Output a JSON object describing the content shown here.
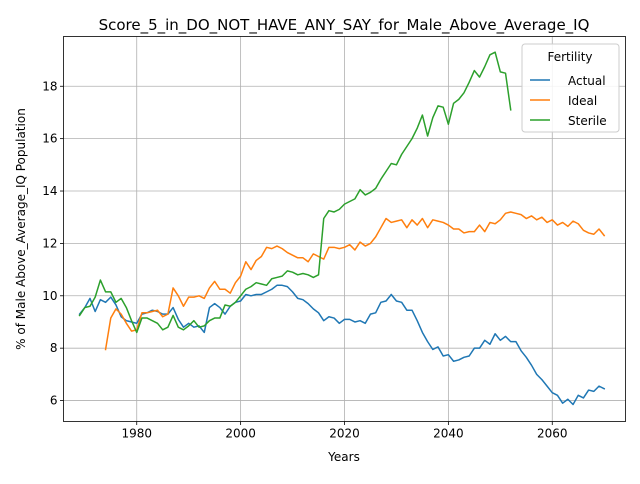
{
  "chart_data": {
    "type": "line",
    "title": "Score_5_in_DO_NOT_HAVE_ANY_SAY_for_Male_Above_Average_IQ",
    "xlabel": "Years",
    "ylabel": "% of Male Above_Average_IQ Population",
    "xlim": [
      1965.9,
      2074.1
    ],
    "ylim": [
      5.2,
      19.9
    ],
    "xticks": [
      1980,
      2000,
      2020,
      2040,
      2060
    ],
    "yticks": [
      6,
      8,
      10,
      12,
      14,
      16,
      18
    ],
    "grid": true,
    "legend": {
      "title": "Fertility",
      "placement": "top-right"
    },
    "series": [
      {
        "name": "Actual",
        "color": "#1f77b4",
        "points": [
          [
            1969,
            9.3
          ],
          [
            1970,
            9.55
          ],
          [
            1971,
            9.9
          ],
          [
            1972,
            9.4
          ],
          [
            1973,
            9.85
          ],
          [
            1974,
            9.75
          ],
          [
            1975,
            9.95
          ],
          [
            1976,
            9.65
          ],
          [
            1977,
            9.2
          ],
          [
            1978,
            9.05
          ],
          [
            1979,
            9.0
          ],
          [
            1980,
            8.95
          ],
          [
            1981,
            9.3
          ],
          [
            1982,
            9.35
          ],
          [
            1983,
            9.45
          ],
          [
            1984,
            9.4
          ],
          [
            1985,
            9.3
          ],
          [
            1986,
            9.3
          ],
          [
            1987,
            9.55
          ],
          [
            1988,
            9.1
          ],
          [
            1989,
            8.8
          ],
          [
            1990,
            8.95
          ],
          [
            1991,
            8.8
          ],
          [
            1992,
            8.85
          ],
          [
            1993,
            8.6
          ],
          [
            1994,
            9.55
          ],
          [
            1995,
            9.7
          ],
          [
            1996,
            9.55
          ],
          [
            1997,
            9.3
          ],
          [
            1998,
            9.6
          ],
          [
            1999,
            9.75
          ],
          [
            2000,
            9.8
          ],
          [
            2001,
            10.05
          ],
          [
            2002,
            10.0
          ],
          [
            2003,
            10.05
          ],
          [
            2004,
            10.05
          ],
          [
            2005,
            10.15
          ],
          [
            2006,
            10.25
          ],
          [
            2007,
            10.4
          ],
          [
            2008,
            10.4
          ],
          [
            2009,
            10.35
          ],
          [
            2010,
            10.15
          ],
          [
            2011,
            9.9
          ],
          [
            2012,
            9.85
          ],
          [
            2013,
            9.7
          ],
          [
            2014,
            9.5
          ],
          [
            2015,
            9.35
          ],
          [
            2016,
            9.05
          ],
          [
            2017,
            9.2
          ],
          [
            2018,
            9.15
          ],
          [
            2019,
            8.95
          ],
          [
            2020,
            9.1
          ],
          [
            2021,
            9.1
          ],
          [
            2022,
            9.0
          ],
          [
            2023,
            9.05
          ],
          [
            2024,
            8.95
          ],
          [
            2025,
            9.3
          ],
          [
            2026,
            9.35
          ],
          [
            2027,
            9.75
          ],
          [
            2028,
            9.8
          ],
          [
            2029,
            10.05
          ],
          [
            2030,
            9.8
          ],
          [
            2031,
            9.75
          ],
          [
            2032,
            9.45
          ],
          [
            2033,
            9.45
          ],
          [
            2034,
            9.05
          ],
          [
            2035,
            8.6
          ],
          [
            2036,
            8.25
          ],
          [
            2037,
            7.95
          ],
          [
            2038,
            8.05
          ],
          [
            2039,
            7.7
          ],
          [
            2040,
            7.75
          ],
          [
            2041,
            7.5
          ],
          [
            2042,
            7.55
          ],
          [
            2043,
            7.65
          ],
          [
            2044,
            7.7
          ],
          [
            2045,
            8.0
          ],
          [
            2046,
            8.0
          ],
          [
            2047,
            8.3
          ],
          [
            2048,
            8.15
          ],
          [
            2049,
            8.55
          ],
          [
            2050,
            8.3
          ],
          [
            2051,
            8.45
          ],
          [
            2052,
            8.25
          ],
          [
            2053,
            8.25
          ],
          [
            2054,
            7.9
          ],
          [
            2055,
            7.65
          ],
          [
            2056,
            7.35
          ],
          [
            2057,
            7.0
          ],
          [
            2058,
            6.8
          ],
          [
            2059,
            6.55
          ],
          [
            2060,
            6.3
          ],
          [
            2061,
            6.2
          ],
          [
            2062,
            5.9
          ],
          [
            2063,
            6.05
          ],
          [
            2064,
            5.85
          ],
          [
            2065,
            6.2
          ],
          [
            2066,
            6.1
          ],
          [
            2067,
            6.4
          ],
          [
            2068,
            6.35
          ],
          [
            2069,
            6.55
          ],
          [
            2070,
            6.45
          ]
        ]
      },
      {
        "name": "Ideal",
        "color": "#ff7f0e",
        "points": [
          [
            1974,
            7.95
          ],
          [
            1975,
            9.15
          ],
          [
            1976,
            9.5
          ],
          [
            1977,
            9.3
          ],
          [
            1978,
            8.95
          ],
          [
            1979,
            8.65
          ],
          [
            1980,
            8.7
          ],
          [
            1981,
            9.35
          ],
          [
            1982,
            9.35
          ],
          [
            1983,
            9.4
          ],
          [
            1984,
            9.45
          ],
          [
            1985,
            9.2
          ],
          [
            1986,
            9.3
          ],
          [
            1987,
            10.3
          ],
          [
            1988,
            10.0
          ],
          [
            1989,
            9.6
          ],
          [
            1990,
            9.95
          ],
          [
            1991,
            9.95
          ],
          [
            1992,
            10.0
          ],
          [
            1993,
            9.9
          ],
          [
            1994,
            10.3
          ],
          [
            1995,
            10.55
          ],
          [
            1996,
            10.25
          ],
          [
            1997,
            10.25
          ],
          [
            1998,
            10.1
          ],
          [
            1999,
            10.5
          ],
          [
            2000,
            10.75
          ],
          [
            2001,
            11.3
          ],
          [
            2002,
            11.0
          ],
          [
            2003,
            11.35
          ],
          [
            2004,
            11.5
          ],
          [
            2005,
            11.85
          ],
          [
            2006,
            11.8
          ],
          [
            2007,
            11.9
          ],
          [
            2008,
            11.8
          ],
          [
            2009,
            11.65
          ],
          [
            2010,
            11.55
          ],
          [
            2011,
            11.45
          ],
          [
            2012,
            11.45
          ],
          [
            2013,
            11.3
          ],
          [
            2014,
            11.6
          ],
          [
            2015,
            11.5
          ],
          [
            2016,
            11.4
          ],
          [
            2017,
            11.85
          ],
          [
            2018,
            11.85
          ],
          [
            2019,
            11.8
          ],
          [
            2020,
            11.85
          ],
          [
            2021,
            11.95
          ],
          [
            2022,
            11.75
          ],
          [
            2023,
            12.05
          ],
          [
            2024,
            11.9
          ],
          [
            2025,
            12.0
          ],
          [
            2026,
            12.25
          ],
          [
            2027,
            12.6
          ],
          [
            2028,
            12.95
          ],
          [
            2029,
            12.8
          ],
          [
            2030,
            12.85
          ],
          [
            2031,
            12.9
          ],
          [
            2032,
            12.6
          ],
          [
            2033,
            12.9
          ],
          [
            2034,
            12.7
          ],
          [
            2035,
            12.95
          ],
          [
            2036,
            12.6
          ],
          [
            2037,
            12.9
          ],
          [
            2038,
            12.85
          ],
          [
            2039,
            12.8
          ],
          [
            2040,
            12.7
          ],
          [
            2041,
            12.55
          ],
          [
            2042,
            12.55
          ],
          [
            2043,
            12.4
          ],
          [
            2044,
            12.45
          ],
          [
            2045,
            12.45
          ],
          [
            2046,
            12.7
          ],
          [
            2047,
            12.45
          ],
          [
            2048,
            12.8
          ],
          [
            2049,
            12.75
          ],
          [
            2050,
            12.9
          ],
          [
            2051,
            13.15
          ],
          [
            2052,
            13.2
          ],
          [
            2053,
            13.15
          ],
          [
            2054,
            13.1
          ],
          [
            2055,
            12.95
          ],
          [
            2056,
            13.05
          ],
          [
            2057,
            12.9
          ],
          [
            2058,
            13.0
          ],
          [
            2059,
            12.8
          ],
          [
            2060,
            12.9
          ],
          [
            2061,
            12.7
          ],
          [
            2062,
            12.8
          ],
          [
            2063,
            12.65
          ],
          [
            2064,
            12.85
          ],
          [
            2065,
            12.75
          ],
          [
            2066,
            12.5
          ],
          [
            2067,
            12.4
          ],
          [
            2068,
            12.35
          ],
          [
            2069,
            12.55
          ],
          [
            2070,
            12.3
          ]
        ]
      },
      {
        "name": "Sterile",
        "color": "#2ca02c",
        "points": [
          [
            1969,
            9.25
          ],
          [
            1970,
            9.55
          ],
          [
            1971,
            9.6
          ],
          [
            1972,
            9.95
          ],
          [
            1973,
            10.6
          ],
          [
            1974,
            10.15
          ],
          [
            1975,
            10.15
          ],
          [
            1976,
            9.75
          ],
          [
            1977,
            9.9
          ],
          [
            1978,
            9.55
          ],
          [
            1979,
            9.05
          ],
          [
            1980,
            8.6
          ],
          [
            1981,
            9.15
          ],
          [
            1982,
            9.15
          ],
          [
            1983,
            9.05
          ],
          [
            1984,
            8.95
          ],
          [
            1985,
            8.7
          ],
          [
            1986,
            8.8
          ],
          [
            1987,
            9.25
          ],
          [
            1988,
            8.8
          ],
          [
            1989,
            8.7
          ],
          [
            1990,
            8.85
          ],
          [
            1991,
            9.05
          ],
          [
            1992,
            8.8
          ],
          [
            1993,
            8.85
          ],
          [
            1994,
            9.05
          ],
          [
            1995,
            9.15
          ],
          [
            1996,
            9.15
          ],
          [
            1997,
            9.65
          ],
          [
            1998,
            9.6
          ],
          [
            1999,
            9.75
          ],
          [
            2000,
            10.0
          ],
          [
            2001,
            10.25
          ],
          [
            2002,
            10.35
          ],
          [
            2003,
            10.5
          ],
          [
            2004,
            10.45
          ],
          [
            2005,
            10.4
          ],
          [
            2006,
            10.65
          ],
          [
            2007,
            10.7
          ],
          [
            2008,
            10.75
          ],
          [
            2009,
            10.95
          ],
          [
            2010,
            10.9
          ],
          [
            2011,
            10.8
          ],
          [
            2012,
            10.85
          ],
          [
            2013,
            10.8
          ],
          [
            2014,
            10.7
          ],
          [
            2015,
            10.8
          ],
          [
            2016,
            12.95
          ],
          [
            2017,
            13.25
          ],
          [
            2018,
            13.2
          ],
          [
            2019,
            13.3
          ],
          [
            2020,
            13.5
          ],
          [
            2021,
            13.6
          ],
          [
            2022,
            13.7
          ],
          [
            2023,
            14.05
          ],
          [
            2024,
            13.85
          ],
          [
            2025,
            13.95
          ],
          [
            2026,
            14.1
          ],
          [
            2027,
            14.45
          ],
          [
            2028,
            14.75
          ],
          [
            2029,
            15.05
          ],
          [
            2030,
            15.0
          ],
          [
            2031,
            15.4
          ],
          [
            2032,
            15.7
          ],
          [
            2033,
            16.0
          ],
          [
            2034,
            16.4
          ],
          [
            2035,
            16.9
          ],
          [
            2036,
            16.1
          ],
          [
            2037,
            16.8
          ],
          [
            2038,
            17.25
          ],
          [
            2039,
            17.2
          ],
          [
            2040,
            16.55
          ],
          [
            2041,
            17.35
          ],
          [
            2042,
            17.5
          ],
          [
            2043,
            17.75
          ],
          [
            2044,
            18.15
          ],
          [
            2045,
            18.6
          ],
          [
            2046,
            18.35
          ],
          [
            2047,
            18.75
          ],
          [
            2048,
            19.2
          ],
          [
            2049,
            19.3
          ],
          [
            2050,
            18.55
          ],
          [
            2051,
            18.5
          ],
          [
            2052,
            17.1
          ]
        ]
      }
    ]
  }
}
